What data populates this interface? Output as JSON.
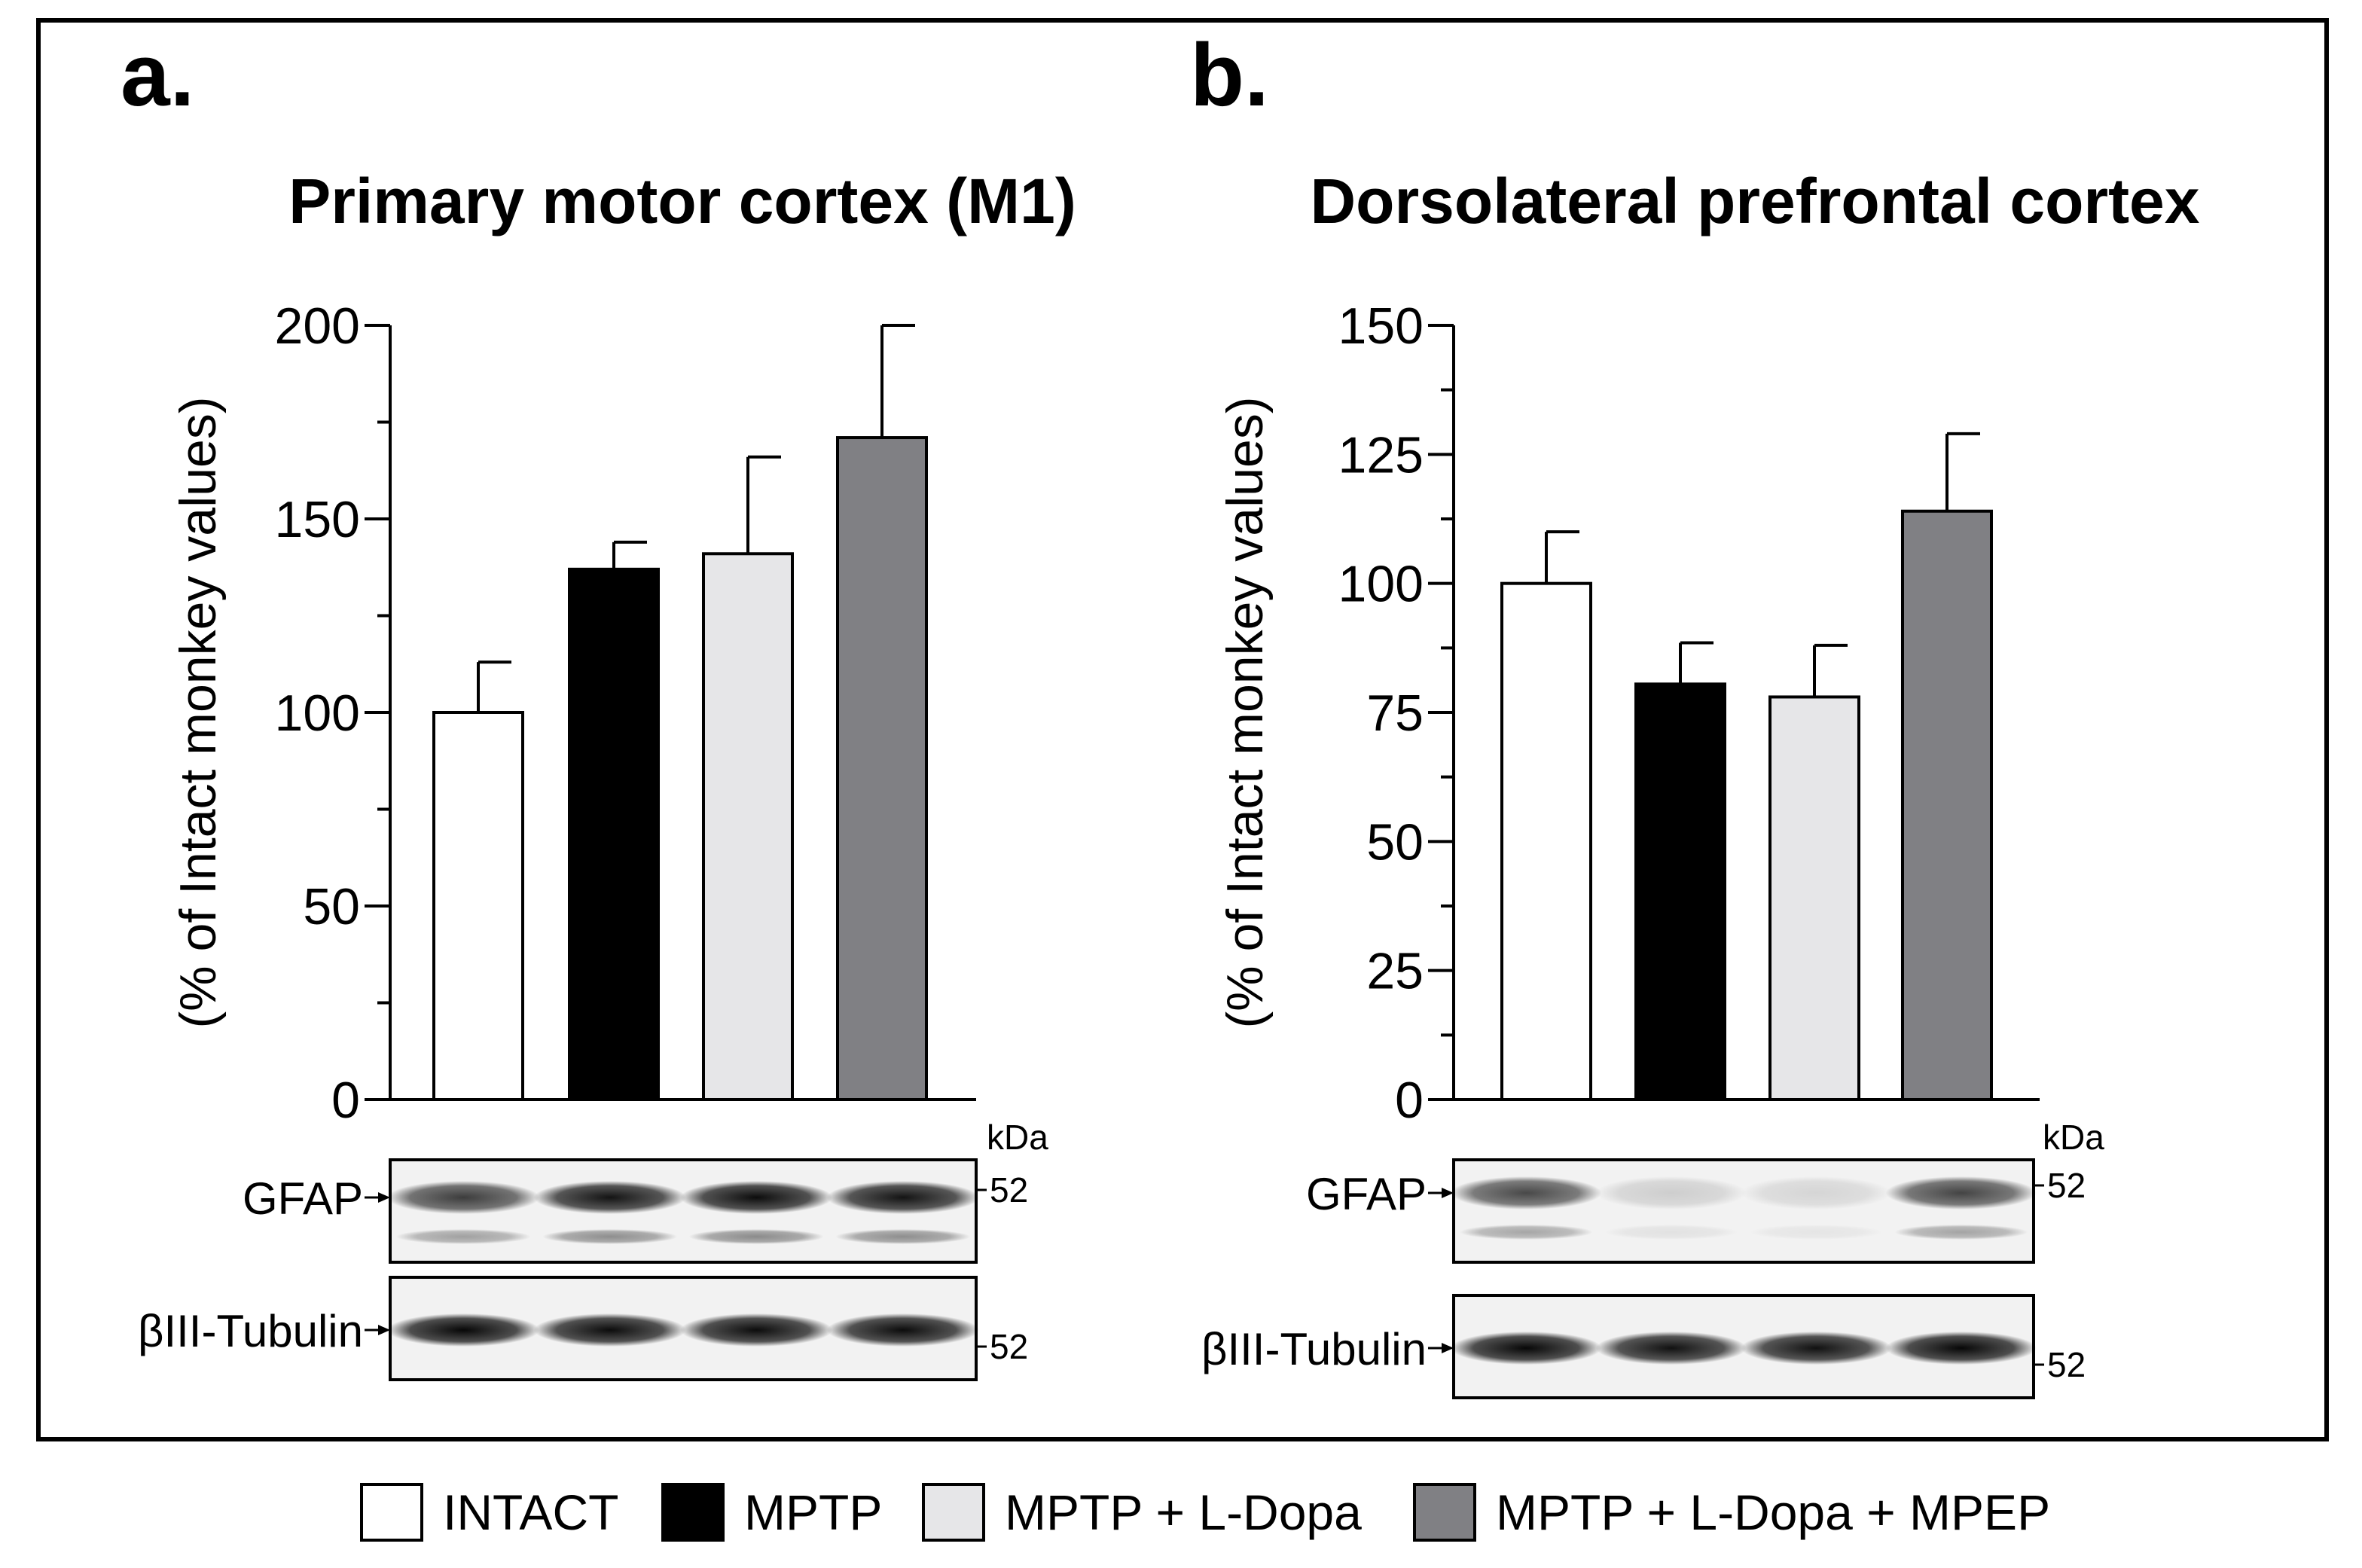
{
  "colors": {
    "INTACT": "#ffffff",
    "MPTP": "#000000",
    "MPTP + L-Dopa": "#e6e6e8",
    "MPTP + L-Dopa + MPEP": "#808084"
  },
  "chart_data": [
    {
      "type": "bar",
      "panel": "a.",
      "title": "Primary motor cortex (M1)",
      "ylabel": "(% of Intact monkey values)",
      "ylim": [
        0,
        200
      ],
      "yticks": [
        0,
        50,
        100,
        150,
        200
      ],
      "categories": [
        "INTACT",
        "MPTP",
        "MPTP + L-Dopa",
        "MPTP + L-Dopa + MPEP"
      ],
      "values": [
        100,
        137,
        141,
        171
      ],
      "errors": [
        13,
        7,
        25,
        29
      ],
      "blot": {
        "unit": "kDa",
        "rows": [
          {
            "label": "GFAP",
            "marker": "52",
            "intensity": [
              0.75,
              0.92,
              0.95,
              0.92
            ]
          },
          {
            "label": "βIII-Tubulin",
            "marker": "52",
            "intensity": [
              0.97,
              0.95,
              0.95,
              0.95
            ]
          }
        ]
      }
    },
    {
      "type": "bar",
      "panel": "b.",
      "title": "Dorsolateral prefrontal cortex",
      "ylabel": "(% of Intact monkey values)",
      "ylim": [
        0,
        150
      ],
      "yticks": [
        0,
        25,
        50,
        75,
        100,
        125,
        150
      ],
      "categories": [
        "INTACT",
        "MPTP",
        "MPTP + L-Dopa",
        "MPTP + L-Dopa + MPEP"
      ],
      "values": [
        100,
        80.5,
        78,
        114
      ],
      "errors": [
        10,
        8,
        10,
        15
      ],
      "blot": {
        "unit": "kDa",
        "rows": [
          {
            "label": "GFAP",
            "marker": "52",
            "intensity": [
              0.7,
              0.15,
              0.12,
              0.72
            ]
          },
          {
            "label": "βIII-Tubulin",
            "marker": "52",
            "intensity": [
              0.97,
              0.93,
              0.93,
              0.97
            ]
          }
        ]
      }
    }
  ],
  "legend": [
    {
      "label": "INTACT",
      "color": "#ffffff"
    },
    {
      "label": "MPTP",
      "color": "#000000"
    },
    {
      "label": "MPTP + L-Dopa",
      "color": "#e6e6e8"
    },
    {
      "label": "MPTP + L-Dopa + MPEP",
      "color": "#808084"
    }
  ]
}
